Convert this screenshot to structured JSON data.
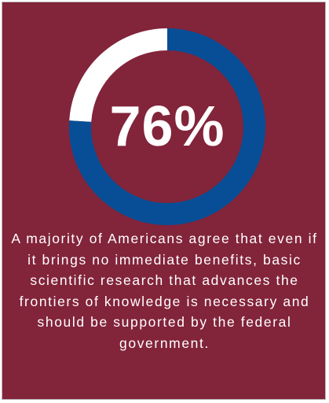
{
  "colors": {
    "background": "#82243a",
    "ring_filled": "#074e96",
    "ring_empty": "#ffffff",
    "text": "#ffffff"
  },
  "chart_data": {
    "type": "pie",
    "style": "donut",
    "values": [
      76,
      24
    ],
    "center_label": "76%",
    "colors": [
      "#074e96",
      "#ffffff"
    ]
  },
  "caption": {
    "text": "A majority of Americans agree that even if it brings no immediate benefits, basic scientific research that advances the frontiers of knowledge is necessary and should be supported by the federal government."
  }
}
